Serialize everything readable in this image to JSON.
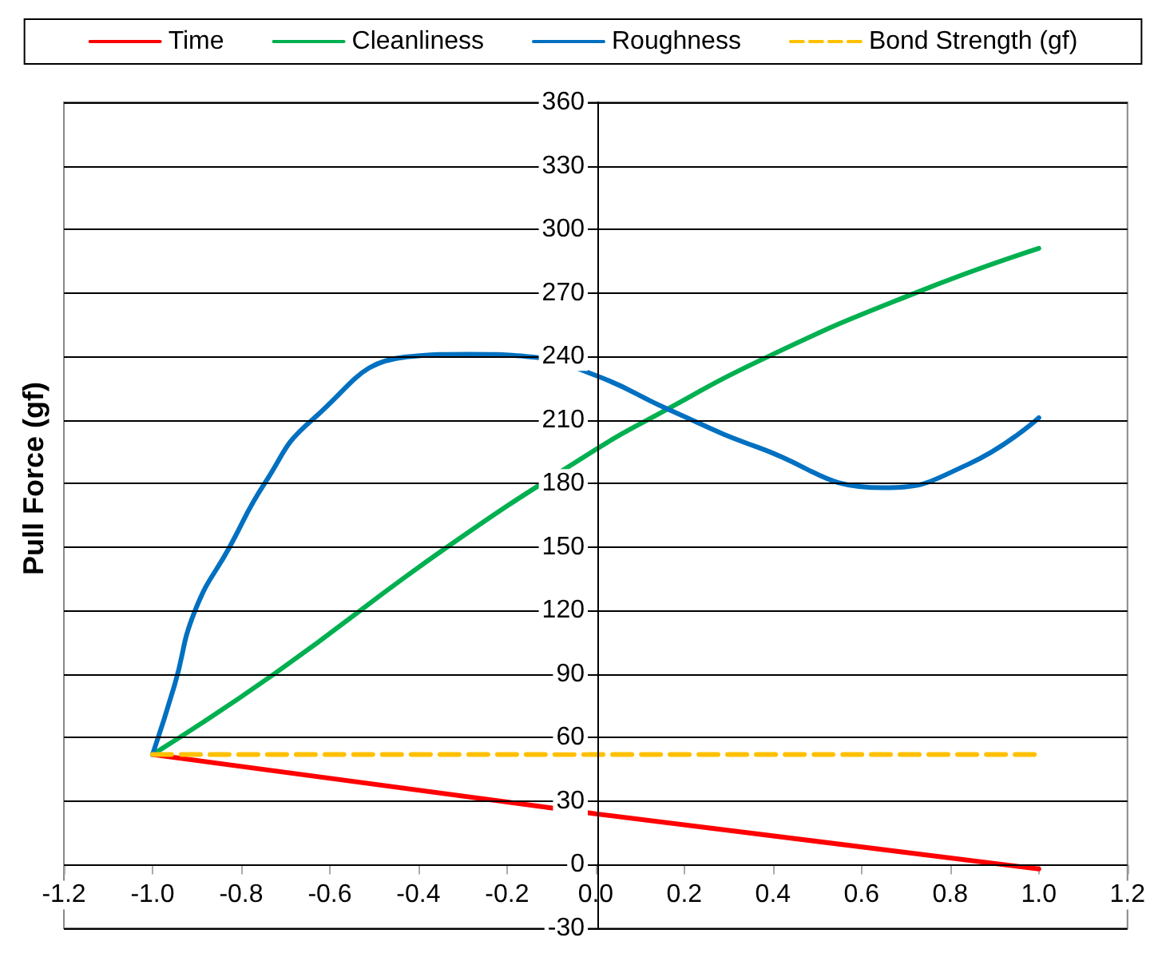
{
  "chart_data": {
    "type": "line",
    "ylabel": "Pull Force (gf)",
    "xlim": [
      -1.2,
      1.2
    ],
    "xticks": [
      -1.2,
      {
        "value": -1.0,
        "label": "-1.0"
      },
      -0.8,
      -0.6,
      -0.4,
      -0.2,
      {
        "value": 0,
        "label": "0.0"
      },
      0.2,
      0.4,
      0.6,
      0.8,
      {
        "value": 1.0,
        "label": "1.0"
      },
      1.2
    ],
    "ylim": [
      -30,
      360
    ],
    "yticks": [
      -30,
      0,
      30,
      60,
      90,
      120,
      150,
      180,
      210,
      240,
      270,
      300,
      330,
      360
    ],
    "grid": "y",
    "legend": "top",
    "line_style": "solid",
    "marker": "none",
    "series": [
      {
        "name": "Time",
        "color": "#ff0000",
        "x": [
          -1,
          0,
          1
        ],
        "values": [
          52,
          24,
          -2
        ]
      },
      {
        "name": "Cleanliness",
        "color": "#00b050",
        "x": [
          -1,
          -0.726,
          -0.335,
          0,
          0.117,
          0.39,
          0.722,
          1
        ],
        "values": [
          52,
          90,
          150,
          196,
          210,
          240,
          270,
          291
        ]
      },
      {
        "name": "Roughness",
        "color": "#0070c0",
        "x": [
          -1,
          -0.95,
          -0.904,
          -0.826,
          -0.747,
          -0.64,
          -0.416,
          -0.285,
          -0.157,
          0,
          0.164,
          0.367,
          0.651,
          0.84,
          1
        ],
        "values": [
          52,
          85,
          120,
          150,
          180,
          210,
          240,
          241,
          240,
          231,
          215,
          197,
          178,
          189,
          211
        ]
      },
      {
        "name": "Bond Strength (gf)",
        "color": "#ffc000",
        "line_style": "dashed",
        "x": [
          -1,
          1
        ],
        "values": [
          52,
          52
        ]
      }
    ]
  }
}
